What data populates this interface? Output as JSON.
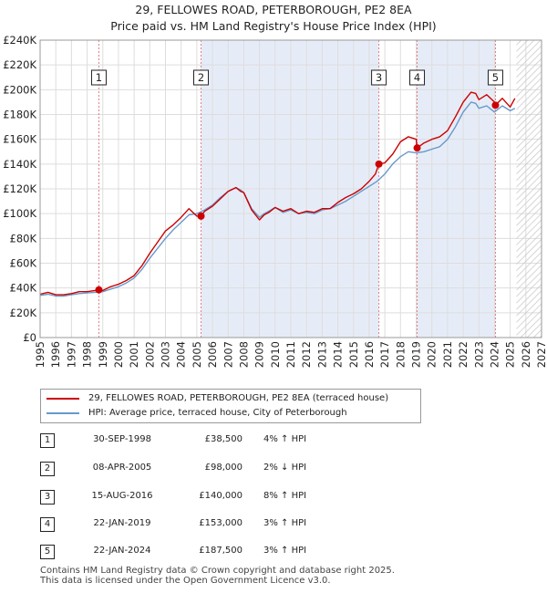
{
  "title_line1": "29, FELLOWES ROAD, PETERBOROUGH, PE2 8EA",
  "title_line2": "Price paid vs. HM Land Registry's House Price Index (HPI)",
  "colors": {
    "price_line": "#cc0000",
    "hpi_line": "#6699cc",
    "marker": "#cc0000",
    "grid": "#dddddd",
    "shade": "#e6ecf7",
    "event_line": "#e08080"
  },
  "chart_data": {
    "type": "line",
    "title": "29, FELLOWES ROAD, PETERBOROUGH, PE2 8EA",
    "subtitle": "Price paid vs. HM Land Registry's House Price Index (HPI)",
    "xlabel": "",
    "ylabel": "",
    "xlim": [
      1995,
      2027
    ],
    "ylim": [
      0,
      240000
    ],
    "grid": true,
    "y_ticks": [
      0,
      20000,
      40000,
      60000,
      80000,
      100000,
      120000,
      140000,
      160000,
      180000,
      200000,
      220000,
      240000
    ],
    "y_tick_labels": [
      "£0",
      "£20K",
      "£40K",
      "£60K",
      "£80K",
      "£100K",
      "£120K",
      "£140K",
      "£160K",
      "£180K",
      "£200K",
      "£220K",
      "£240K"
    ],
    "x_ticks": [
      1995,
      1996,
      1997,
      1998,
      1999,
      2000,
      2001,
      2002,
      2003,
      2004,
      2005,
      2006,
      2007,
      2008,
      2009,
      2010,
      2011,
      2012,
      2013,
      2014,
      2015,
      2016,
      2017,
      2018,
      2019,
      2020,
      2021,
      2022,
      2023,
      2024,
      2025,
      2026,
      2027
    ],
    "x_tick_labels": [
      "1995",
      "1996",
      "1997",
      "1998",
      "1999",
      "2000",
      "2001",
      "2002",
      "2003",
      "2004",
      "2005",
      "2006",
      "2007",
      "2008",
      "2009",
      "2010",
      "2011",
      "2012",
      "2013",
      "2014",
      "2015",
      "2016",
      "2017",
      "2018",
      "2019",
      "2020",
      "2021",
      "2022",
      "2023",
      "2024",
      "2025",
      "2026",
      "2027"
    ],
    "legend_position": "below",
    "hatched_future_from": 2025.4,
    "series": [
      {
        "name": "29, FELLOWES ROAD, PETERBOROUGH, PE2 8EA (terraced house)",
        "color": "#cc0000",
        "x": [
          1995.0,
          1995.5,
          1996.0,
          1996.5,
          1997.0,
          1997.5,
          1998.0,
          1998.5,
          1998.75,
          1999.0,
          1999.5,
          2000.0,
          2000.5,
          2001.0,
          2001.5,
          2002.0,
          2002.5,
          2003.0,
          2003.5,
          2004.0,
          2004.5,
          2005.0,
          2005.27,
          2005.5,
          2006.0,
          2006.5,
          2007.0,
          2007.5,
          2007.8,
          2008.0,
          2008.5,
          2009.0,
          2009.3,
          2009.6,
          2010.0,
          2010.5,
          2011.0,
          2011.5,
          2012.0,
          2012.5,
          2013.0,
          2013.5,
          2014.0,
          2014.5,
          2015.0,
          2015.5,
          2016.0,
          2016.4,
          2016.62,
          2017.0,
          2017.5,
          2018.0,
          2018.5,
          2019.0,
          2019.06,
          2019.5,
          2020.0,
          2020.5,
          2021.0,
          2021.5,
          2022.0,
          2022.5,
          2022.8,
          2023.0,
          2023.5,
          2024.0,
          2024.06,
          2024.5,
          2025.0,
          2025.3
        ],
        "values": [
          35000,
          36500,
          34500,
          34500,
          35500,
          37000,
          37000,
          38000,
          38500,
          38000,
          41000,
          43000,
          46000,
          50000,
          58000,
          68000,
          77000,
          86000,
          91000,
          97000,
          104000,
          98000,
          98000,
          102000,
          106000,
          112000,
          118000,
          121000,
          118000,
          117000,
          103000,
          95000,
          99000,
          101000,
          105000,
          102000,
          104000,
          100000,
          102000,
          101000,
          104000,
          104000,
          109000,
          113000,
          116000,
          120000,
          126000,
          132000,
          140000,
          141000,
          148000,
          158000,
          162000,
          160000,
          153000,
          157000,
          160000,
          162000,
          167000,
          178000,
          190000,
          198000,
          197000,
          192000,
          196000,
          190000,
          187500,
          193000,
          186000,
          193000
        ]
      },
      {
        "name": "HPI: Average price, terraced house, City of Peterborough",
        "color": "#6699cc",
        "x": [
          1995.0,
          1995.5,
          1996.0,
          1996.5,
          1997.0,
          1997.5,
          1998.0,
          1998.5,
          1999.0,
          1999.5,
          2000.0,
          2000.5,
          2001.0,
          2001.5,
          2002.0,
          2002.5,
          2003.0,
          2003.5,
          2004.0,
          2004.5,
          2005.0,
          2005.5,
          2006.0,
          2006.5,
          2007.0,
          2007.5,
          2007.8,
          2008.0,
          2008.5,
          2009.0,
          2009.3,
          2009.6,
          2010.0,
          2010.5,
          2011.0,
          2011.5,
          2012.0,
          2012.5,
          2013.0,
          2013.5,
          2014.0,
          2014.5,
          2015.0,
          2015.5,
          2016.0,
          2016.5,
          2017.0,
          2017.5,
          2018.0,
          2018.5,
          2019.0,
          2019.5,
          2020.0,
          2020.5,
          2021.0,
          2021.5,
          2022.0,
          2022.5,
          2022.8,
          2023.0,
          2023.5,
          2024.0,
          2024.5,
          2025.0,
          2025.3
        ],
        "values": [
          34000,
          35000,
          33500,
          33500,
          34500,
          35500,
          36000,
          36500,
          37000,
          39000,
          41000,
          44000,
          48000,
          55000,
          64000,
          72000,
          80000,
          87000,
          93000,
          99000,
          100000,
          103000,
          107000,
          113000,
          118000,
          121000,
          119000,
          117000,
          104000,
          97000,
          100000,
          102000,
          105000,
          101000,
          103000,
          100000,
          101000,
          100000,
          103000,
          104000,
          107000,
          110000,
          114000,
          118000,
          122000,
          126000,
          132000,
          140000,
          146000,
          150000,
          149000,
          150000,
          152000,
          154000,
          160000,
          170000,
          182000,
          190000,
          189000,
          185000,
          187000,
          182000,
          187000,
          183000,
          185000
        ]
      }
    ],
    "sales": [
      {
        "n": "1",
        "x": 1998.75,
        "value": 38500
      },
      {
        "n": "2",
        "x": 2005.27,
        "value": 98000
      },
      {
        "n": "3",
        "x": 2016.62,
        "value": 140000
      },
      {
        "n": "4",
        "x": 2019.06,
        "value": 153000
      },
      {
        "n": "5",
        "x": 2024.06,
        "value": 187500
      }
    ],
    "shaded_spans": [
      [
        2005.27,
        2016.62
      ],
      [
        2019.06,
        2024.06
      ]
    ]
  },
  "legend": [
    {
      "label": "29, FELLOWES ROAD, PETERBOROUGH, PE2 8EA (terraced house)",
      "color": "#cc0000"
    },
    {
      "label": "HPI: Average price, terraced house, City of Peterborough",
      "color": "#6699cc"
    }
  ],
  "sales_table": [
    {
      "n": "1",
      "date": "30-SEP-1998",
      "price": "£38,500",
      "hpi": "4% ↑ HPI"
    },
    {
      "n": "2",
      "date": "08-APR-2005",
      "price": "£98,000",
      "hpi": "2% ↓ HPI"
    },
    {
      "n": "3",
      "date": "15-AUG-2016",
      "price": "£140,000",
      "hpi": "8% ↑ HPI"
    },
    {
      "n": "4",
      "date": "22-JAN-2019",
      "price": "£153,000",
      "hpi": "3% ↑ HPI"
    },
    {
      "n": "5",
      "date": "22-JAN-2024",
      "price": "£187,500",
      "hpi": "3% ↑ HPI"
    }
  ],
  "footer_line1": "Contains HM Land Registry data © Crown copyright and database right 2025.",
  "footer_line2": "This data is licensed under the Open Government Licence v3.0."
}
